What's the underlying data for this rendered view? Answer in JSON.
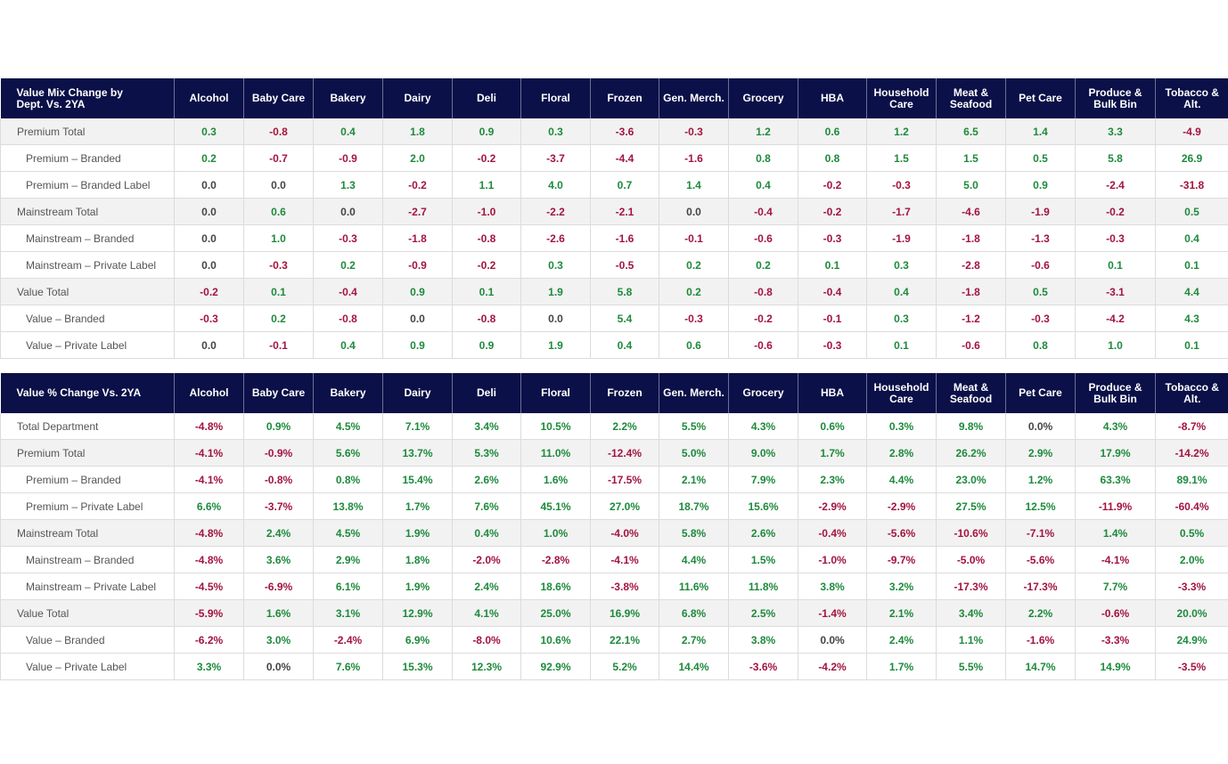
{
  "tables": [
    {
      "id": "mix",
      "title": "Value Mix Change by\nDept. Vs. 2YA",
      "columns": [
        "Alcohol",
        "Baby Care",
        "Bakery",
        "Dairy",
        "Deli",
        "Floral",
        "Frozen",
        "Gen. Merch.",
        "Grocery",
        "HBA",
        "Household\nCare",
        "Meat &\nSeafood",
        "Pet Care",
        "Produce &\nBulk Bin",
        "Tobacco &\nAlt."
      ],
      "rows": [
        {
          "label": "Premium Total",
          "total": true,
          "values": [
            "0.3",
            "-0.8",
            "0.4",
            "1.8",
            "0.9",
            "0.3",
            "-3.6",
            "-0.3",
            "1.2",
            "0.6",
            "1.2",
            "6.5",
            "1.4",
            "3.3",
            "-4.9"
          ]
        },
        {
          "label": "Premium – Branded",
          "total": false,
          "values": [
            "0.2",
            "-0.7",
            "-0.9",
            "2.0",
            "-0.2",
            "-3.7",
            "-4.4",
            "-1.6",
            "0.8",
            "0.8",
            "1.5",
            "1.5",
            "0.5",
            "5.8",
            "26.9"
          ]
        },
        {
          "label": "Premium – Branded Label",
          "total": false,
          "values": [
            "0.0",
            "0.0",
            "1.3",
            "-0.2",
            "1.1",
            "4.0",
            "0.7",
            "1.4",
            "0.4",
            "-0.2",
            "-0.3",
            "5.0",
            "0.9",
            "-2.4",
            "-31.8"
          ]
        },
        {
          "label": "Mainstream Total",
          "total": true,
          "values": [
            "0.0",
            "0.6",
            "0.0",
            "-2.7",
            "-1.0",
            "-2.2",
            "-2.1",
            "0.0",
            "-0.4",
            "-0.2",
            "-1.7",
            "-4.6",
            "-1.9",
            "-0.2",
            "0.5"
          ]
        },
        {
          "label": "Mainstream – Branded",
          "total": false,
          "values": [
            "0.0",
            "1.0",
            "-0.3",
            "-1.8",
            "-0.8",
            "-2.6",
            "-1.6",
            "-0.1",
            "-0.6",
            "-0.3",
            "-1.9",
            "-1.8",
            "-1.3",
            "-0.3",
            "0.4"
          ]
        },
        {
          "label": "Mainstream – Private Label",
          "total": false,
          "values": [
            "0.0",
            "-0.3",
            "0.2",
            "-0.9",
            "-0.2",
            "0.3",
            "-0.5",
            "0.2",
            "0.2",
            "0.1",
            "0.3",
            "-2.8",
            "-0.6",
            "0.1",
            "0.1"
          ]
        },
        {
          "label": "Value Total",
          "total": true,
          "values": [
            "-0.2",
            "0.1",
            "-0.4",
            "0.9",
            "0.1",
            "1.9",
            "5.8",
            "0.2",
            "-0.8",
            "-0.4",
            "0.4",
            "-1.8",
            "0.5",
            "-3.1",
            "4.4"
          ]
        },
        {
          "label": "Value – Branded",
          "total": false,
          "values": [
            "-0.3",
            "0.2",
            "-0.8",
            "0.0",
            "-0.8",
            "0.0",
            "5.4",
            "-0.3",
            "-0.2",
            "-0.1",
            "0.3",
            "-1.2",
            "-0.3",
            "-4.2",
            "4.3"
          ]
        },
        {
          "label": "Value – Private Label",
          "total": false,
          "values": [
            "0.0",
            "-0.1",
            "0.4",
            "0.9",
            "0.9",
            "1.9",
            "0.4",
            "0.6",
            "-0.6",
            "-0.3",
            "0.1",
            "-0.6",
            "0.8",
            "1.0",
            "0.1"
          ]
        }
      ]
    },
    {
      "id": "pct",
      "title": "Value % Change Vs. 2YA",
      "columns": [
        "Alcohol",
        "Baby Care",
        "Bakery",
        "Dairy",
        "Deli",
        "Floral",
        "Frozen",
        "Gen. Merch.",
        "Grocery",
        "HBA",
        "Household\nCare",
        "Meat &\nSeafood",
        "Pet Care",
        "Produce &\nBulk Bin",
        "Tobacco &\nAlt."
      ],
      "rows": [
        {
          "label": "Total Department",
          "total": false,
          "values": [
            "-4.8%",
            "0.9%",
            "4.5%",
            "7.1%",
            "3.4%",
            "10.5%",
            "2.2%",
            "5.5%",
            "4.3%",
            "0.6%",
            "0.3%",
            "9.8%",
            "0.0%",
            "4.3%",
            "-8.7%"
          ]
        },
        {
          "label": "Premium Total",
          "total": true,
          "values": [
            "-4.1%",
            "-0.9%",
            "5.6%",
            "13.7%",
            "5.3%",
            "11.0%",
            "-12.4%",
            "5.0%",
            "9.0%",
            "1.7%",
            "2.8%",
            "26.2%",
            "2.9%",
            "17.9%",
            "-14.2%"
          ]
        },
        {
          "label": "Premium – Branded",
          "total": false,
          "values": [
            "-4.1%",
            "-0.8%",
            "0.8%",
            "15.4%",
            "2.6%",
            "1.6%",
            "-17.5%",
            "2.1%",
            "7.9%",
            "2.3%",
            "4.4%",
            "23.0%",
            "1.2%",
            "63.3%",
            "89.1%"
          ]
        },
        {
          "label": "Premium – Private Label",
          "total": false,
          "values": [
            "6.6%",
            "-3.7%",
            "13.8%",
            "1.7%",
            "7.6%",
            "45.1%",
            "27.0%",
            "18.7%",
            "15.6%",
            "-2.9%",
            "-2.9%",
            "27.5%",
            "12.5%",
            "-11.9%",
            "-60.4%"
          ]
        },
        {
          "label": "Mainstream Total",
          "total": true,
          "values": [
            "-4.8%",
            "2.4%",
            "4.5%",
            "1.9%",
            "0.4%",
            "1.0%",
            "-4.0%",
            "5.8%",
            "2.6%",
            "-0.4%",
            "-5.6%",
            "-10.6%",
            "-7.1%",
            "1.4%",
            "0.5%"
          ]
        },
        {
          "label": "Mainstream – Branded",
          "total": false,
          "values": [
            "-4.8%",
            "3.6%",
            "2.9%",
            "1.8%",
            "-2.0%",
            "-2.8%",
            "-4.1%",
            "4.4%",
            "1.5%",
            "-1.0%",
            "-9.7%",
            "-5.0%",
            "-5.6%",
            "-4.1%",
            "2.0%"
          ]
        },
        {
          "label": "Mainstream – Private Label",
          "total": false,
          "values": [
            "-4.5%",
            "-6.9%",
            "6.1%",
            "1.9%",
            "2.4%",
            "18.6%",
            "-3.8%",
            "11.6%",
            "11.8%",
            "3.8%",
            "3.2%",
            "-17.3%",
            "-17.3%",
            "7.7%",
            "-3.3%"
          ]
        },
        {
          "label": "Value Total",
          "total": true,
          "values": [
            "-5.9%",
            "1.6%",
            "3.1%",
            "12.9%",
            "4.1%",
            "25.0%",
            "16.9%",
            "6.8%",
            "2.5%",
            "-1.4%",
            "2.1%",
            "3.4%",
            "2.2%",
            "-0.6%",
            "20.0%"
          ]
        },
        {
          "label": "Value – Branded",
          "total": false,
          "values": [
            "-6.2%",
            "3.0%",
            "-2.4%",
            "6.9%",
            "-8.0%",
            "10.6%",
            "22.1%",
            "2.7%",
            "3.8%",
            "0.0%",
            "2.4%",
            "1.1%",
            "-1.6%",
            "-3.3%",
            "24.9%"
          ]
        },
        {
          "label": "Value – Private Label",
          "total": false,
          "values": [
            "3.3%",
            "0.0%",
            "7.6%",
            "15.3%",
            "12.3%",
            "92.9%",
            "5.2%",
            "14.4%",
            "-3.6%",
            "-4.2%",
            "1.7%",
            "5.5%",
            "14.7%",
            "14.9%",
            "-3.5%"
          ]
        }
      ]
    }
  ],
  "colors": {
    "header_bg": "#0b1048",
    "positive": "#1e8a3c",
    "negative": "#a3143f",
    "total_row_bg": "#f2f2f2"
  }
}
